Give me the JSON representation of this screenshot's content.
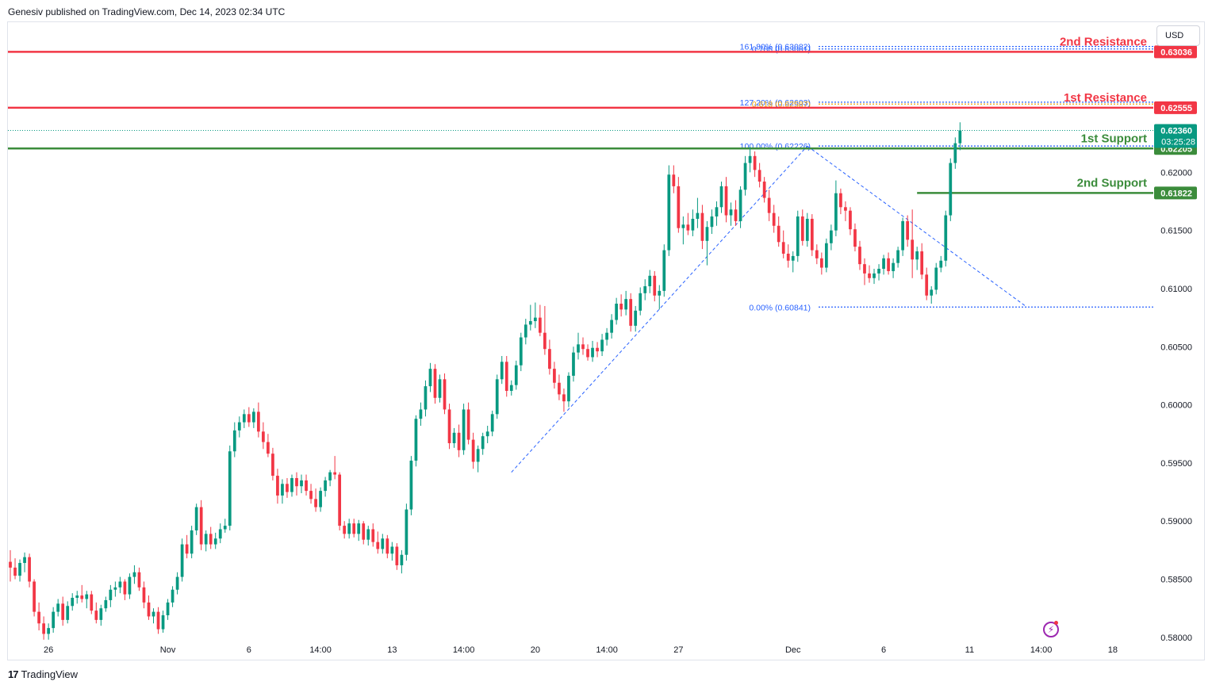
{
  "header": {
    "published": "Genesiv published on TradingView.com, Dec 14, 2023 02:34 UTC"
  },
  "currency": "USD",
  "footer": {
    "logo": "17",
    "brand": "TradingView"
  },
  "colors": {
    "up": "#089981",
    "down": "#f23645",
    "resistance": "#f23645",
    "support": "#3b8c3b",
    "fib": "#2962ff",
    "fib_gold": "#f0a30a",
    "current": "#089981"
  },
  "icons": {
    "flash": "lightning-icon"
  },
  "chart_data": {
    "type": "candlestick",
    "ylim": [
      0.57965,
      0.63291
    ],
    "y_ticks": [
      "0.58000",
      "0.58500",
      "0.59000",
      "0.59500",
      "0.60000",
      "0.60500",
      "0.61000",
      "0.61500",
      "0.62000"
    ],
    "x_ticks": [
      {
        "label": "26",
        "i": 8
      },
      {
        "label": "Nov",
        "i": 33
      },
      {
        "label": "6",
        "i": 50
      },
      {
        "label": "14:00",
        "i": 65
      },
      {
        "label": "13",
        "i": 80
      },
      {
        "label": "14:00",
        "i": 95
      },
      {
        "label": "20",
        "i": 110
      },
      {
        "label": "14:00",
        "i": 125
      },
      {
        "label": "27",
        "i": 140
      },
      {
        "label": "Dec",
        "i": 164
      },
      {
        "label": "6",
        "i": 183
      },
      {
        "label": "11",
        "i": 201
      },
      {
        "label": "14:00",
        "i": 216
      },
      {
        "label": "18",
        "i": 231
      }
    ],
    "bars_visible": 220,
    "bars_total": 240,
    "candles": [
      [
        0.5865,
        0.5875,
        0.5848,
        0.586
      ],
      [
        0.586,
        0.5868,
        0.585,
        0.5853
      ],
      [
        0.5853,
        0.5867,
        0.5848,
        0.5864
      ],
      [
        0.5864,
        0.5873,
        0.5856,
        0.5869
      ],
      [
        0.5869,
        0.5872,
        0.5843,
        0.5848
      ],
      [
        0.5848,
        0.585,
        0.5818,
        0.5822
      ],
      [
        0.5822,
        0.583,
        0.5806,
        0.5812
      ],
      [
        0.5812,
        0.5818,
        0.5798,
        0.5803
      ],
      [
        0.5803,
        0.5812,
        0.5798,
        0.5808
      ],
      [
        0.5808,
        0.5826,
        0.5804,
        0.5822
      ],
      [
        0.5822,
        0.5833,
        0.5818,
        0.5829
      ],
      [
        0.5829,
        0.5835,
        0.581,
        0.5815
      ],
      [
        0.5815,
        0.5831,
        0.5812,
        0.5827
      ],
      [
        0.5827,
        0.5838,
        0.5823,
        0.5834
      ],
      [
        0.5834,
        0.584,
        0.5829,
        0.5836
      ],
      [
        0.5836,
        0.5845,
        0.583,
        0.5833
      ],
      [
        0.5833,
        0.584,
        0.5825,
        0.5837
      ],
      [
        0.5837,
        0.584,
        0.582,
        0.5823
      ],
      [
        0.5823,
        0.583,
        0.5812,
        0.5815
      ],
      [
        0.5815,
        0.5828,
        0.581,
        0.5825
      ],
      [
        0.5825,
        0.5835,
        0.5822,
        0.5832
      ],
      [
        0.5832,
        0.5845,
        0.5826,
        0.5841
      ],
      [
        0.5841,
        0.5848,
        0.5835,
        0.5843
      ],
      [
        0.5843,
        0.5852,
        0.5838,
        0.5848
      ],
      [
        0.5848,
        0.585,
        0.5832,
        0.5837
      ],
      [
        0.5837,
        0.5855,
        0.5833,
        0.5852
      ],
      [
        0.5852,
        0.5862,
        0.5846,
        0.5856
      ],
      [
        0.5856,
        0.586,
        0.584,
        0.5843
      ],
      [
        0.5843,
        0.5848,
        0.5825,
        0.583
      ],
      [
        0.583,
        0.5836,
        0.5815,
        0.5818
      ],
      [
        0.5818,
        0.5825,
        0.5812,
        0.5822
      ],
      [
        0.5822,
        0.5826,
        0.5803,
        0.5807
      ],
      [
        0.5807,
        0.5823,
        0.5804,
        0.5819
      ],
      [
        0.5819,
        0.5833,
        0.5815,
        0.583
      ],
      [
        0.583,
        0.5844,
        0.5826,
        0.5841
      ],
      [
        0.5841,
        0.5856,
        0.5837,
        0.5852
      ],
      [
        0.5852,
        0.5885,
        0.5848,
        0.588
      ],
      [
        0.588,
        0.5888,
        0.5868,
        0.5872
      ],
      [
        0.5872,
        0.5896,
        0.5868,
        0.5892
      ],
      [
        0.5892,
        0.5915,
        0.5888,
        0.5912
      ],
      [
        0.5912,
        0.5918,
        0.5875,
        0.588
      ],
      [
        0.588,
        0.5892,
        0.5874,
        0.5889
      ],
      [
        0.5889,
        0.5895,
        0.5876,
        0.588
      ],
      [
        0.588,
        0.589,
        0.5876,
        0.5885
      ],
      [
        0.5885,
        0.5898,
        0.5881,
        0.5893
      ],
      [
        0.5893,
        0.5902,
        0.589,
        0.5896
      ],
      [
        0.5896,
        0.5965,
        0.5892,
        0.596
      ],
      [
        0.596,
        0.5985,
        0.5955,
        0.5978
      ],
      [
        0.5978,
        0.599,
        0.5972,
        0.5985
      ],
      [
        0.5985,
        0.5996,
        0.598,
        0.5992
      ],
      [
        0.5992,
        0.5998,
        0.5981,
        0.5985
      ],
      [
        0.5985,
        0.5997,
        0.598,
        0.5994
      ],
      [
        0.5994,
        0.6002,
        0.5972,
        0.5977
      ],
      [
        0.5977,
        0.5985,
        0.5962,
        0.5968
      ],
      [
        0.5968,
        0.5975,
        0.5955,
        0.5958
      ],
      [
        0.5958,
        0.5963,
        0.5935,
        0.5939
      ],
      [
        0.5939,
        0.5945,
        0.5915,
        0.5922
      ],
      [
        0.5922,
        0.5936,
        0.5915,
        0.5932
      ],
      [
        0.5932,
        0.5937,
        0.592,
        0.5925
      ],
      [
        0.5925,
        0.594,
        0.5921,
        0.5937
      ],
      [
        0.5937,
        0.5942,
        0.5922,
        0.593
      ],
      [
        0.593,
        0.594,
        0.5924,
        0.5935
      ],
      [
        0.5935,
        0.594,
        0.5922,
        0.5926
      ],
      [
        0.5926,
        0.5932,
        0.5915,
        0.5919
      ],
      [
        0.5919,
        0.5928,
        0.5908,
        0.5912
      ],
      [
        0.5912,
        0.5929,
        0.5908,
        0.5926
      ],
      [
        0.5926,
        0.5938,
        0.5921,
        0.5935
      ],
      [
        0.5935,
        0.5944,
        0.593,
        0.5942
      ],
      [
        0.5942,
        0.5956,
        0.5936,
        0.594
      ],
      [
        0.594,
        0.5942,
        0.5892,
        0.5896
      ],
      [
        0.5896,
        0.59,
        0.5885,
        0.5889
      ],
      [
        0.5889,
        0.5902,
        0.5885,
        0.5898
      ],
      [
        0.5898,
        0.5902,
        0.5886,
        0.5889
      ],
      [
        0.5889,
        0.5901,
        0.5883,
        0.5898
      ],
      [
        0.5898,
        0.59,
        0.588,
        0.5884
      ],
      [
        0.5884,
        0.5896,
        0.5879,
        0.5893
      ],
      [
        0.5893,
        0.5898,
        0.5878,
        0.5882
      ],
      [
        0.5882,
        0.5891,
        0.5872,
        0.5876
      ],
      [
        0.5876,
        0.5889,
        0.5872,
        0.5885
      ],
      [
        0.5885,
        0.5888,
        0.5868,
        0.5872
      ],
      [
        0.5872,
        0.5882,
        0.5866,
        0.5878
      ],
      [
        0.5878,
        0.5881,
        0.5858,
        0.5862
      ],
      [
        0.5862,
        0.5875,
        0.5855,
        0.5871
      ],
      [
        0.5871,
        0.5915,
        0.5866,
        0.591
      ],
      [
        0.591,
        0.5956,
        0.5905,
        0.5952
      ],
      [
        0.5952,
        0.5991,
        0.5947,
        0.5988
      ],
      [
        0.5988,
        0.6002,
        0.5982,
        0.5996
      ],
      [
        0.5996,
        0.6021,
        0.599,
        0.6016
      ],
      [
        0.6016,
        0.6036,
        0.6011,
        0.6031
      ],
      [
        0.6031,
        0.6035,
        0.6001,
        0.6006
      ],
      [
        0.6006,
        0.6026,
        0.6002,
        0.6022
      ],
      [
        0.6022,
        0.6027,
        0.5992,
        0.5996
      ],
      [
        0.5996,
        0.6001,
        0.5962,
        0.5967
      ],
      [
        0.5967,
        0.598,
        0.5963,
        0.5976
      ],
      [
        0.5976,
        0.5983,
        0.5955,
        0.5961
      ],
      [
        0.5961,
        0.6001,
        0.5957,
        0.5996
      ],
      [
        0.5996,
        0.6002,
        0.5966,
        0.597
      ],
      [
        0.597,
        0.5976,
        0.5945,
        0.5951
      ],
      [
        0.5951,
        0.5965,
        0.5942,
        0.5962
      ],
      [
        0.5962,
        0.5976,
        0.5957,
        0.5973
      ],
      [
        0.5973,
        0.5982,
        0.5967,
        0.5977
      ],
      [
        0.5977,
        0.5995,
        0.5973,
        0.5992
      ],
      [
        0.5992,
        0.6026,
        0.5988,
        0.6022
      ],
      [
        0.6022,
        0.6042,
        0.6018,
        0.6037
      ],
      [
        0.6037,
        0.6042,
        0.6007,
        0.6012
      ],
      [
        0.6012,
        0.6021,
        0.6008,
        0.6017
      ],
      [
        0.6017,
        0.6038,
        0.6013,
        0.6034
      ],
      [
        0.6034,
        0.6062,
        0.6029,
        0.6058
      ],
      [
        0.6058,
        0.6074,
        0.6052,
        0.6069
      ],
      [
        0.6069,
        0.6086,
        0.6064,
        0.6072
      ],
      [
        0.6072,
        0.6088,
        0.6066,
        0.6075
      ],
      [
        0.6075,
        0.6086,
        0.6059,
        0.6062
      ],
      [
        0.6062,
        0.6085,
        0.6043,
        0.6048
      ],
      [
        0.6048,
        0.6056,
        0.6026,
        0.6031
      ],
      [
        0.6031,
        0.6037,
        0.6014,
        0.6019
      ],
      [
        0.6019,
        0.6026,
        0.6004,
        0.6009
      ],
      [
        0.6009,
        0.6014,
        0.5994,
        0.6003
      ],
      [
        0.6003,
        0.6028,
        0.5998,
        0.6025
      ],
      [
        0.6025,
        0.605,
        0.602,
        0.6045
      ],
      [
        0.6045,
        0.6062,
        0.6039,
        0.6052
      ],
      [
        0.6052,
        0.6058,
        0.6043,
        0.6048
      ],
      [
        0.6048,
        0.6052,
        0.6038,
        0.6041
      ],
      [
        0.6041,
        0.6055,
        0.6037,
        0.6049
      ],
      [
        0.6049,
        0.6054,
        0.6041,
        0.6046
      ],
      [
        0.6046,
        0.6061,
        0.6042,
        0.6056
      ],
      [
        0.6056,
        0.6066,
        0.6051,
        0.6062
      ],
      [
        0.6062,
        0.6078,
        0.6057,
        0.6073
      ],
      [
        0.6073,
        0.6092,
        0.6069,
        0.6087
      ],
      [
        0.6087,
        0.6095,
        0.6076,
        0.6082
      ],
      [
        0.6082,
        0.6098,
        0.6077,
        0.6091
      ],
      [
        0.6091,
        0.6096,
        0.6063,
        0.6068
      ],
      [
        0.6068,
        0.6085,
        0.6063,
        0.6081
      ],
      [
        0.6081,
        0.6101,
        0.6077,
        0.6096
      ],
      [
        0.6096,
        0.6108,
        0.609,
        0.6102
      ],
      [
        0.6102,
        0.6116,
        0.6096,
        0.6111
      ],
      [
        0.6111,
        0.6115,
        0.6089,
        0.6094
      ],
      [
        0.6094,
        0.6103,
        0.6082,
        0.6098
      ],
      [
        0.6098,
        0.6138,
        0.6093,
        0.6133
      ],
      [
        0.6133,
        0.6206,
        0.6128,
        0.6198
      ],
      [
        0.6198,
        0.6206,
        0.6182,
        0.6188
      ],
      [
        0.6188,
        0.6196,
        0.6148,
        0.6152
      ],
      [
        0.6152,
        0.6162,
        0.6138,
        0.6155
      ],
      [
        0.6155,
        0.6165,
        0.6146,
        0.615
      ],
      [
        0.615,
        0.6168,
        0.6145,
        0.616
      ],
      [
        0.616,
        0.6178,
        0.6152,
        0.6165
      ],
      [
        0.6165,
        0.6172,
        0.6134,
        0.6141
      ],
      [
        0.6141,
        0.6158,
        0.612,
        0.6153
      ],
      [
        0.6153,
        0.6168,
        0.6147,
        0.6162
      ],
      [
        0.6162,
        0.6175,
        0.6154,
        0.617
      ],
      [
        0.617,
        0.6192,
        0.6165,
        0.6188
      ],
      [
        0.6188,
        0.6196,
        0.6157,
        0.6163
      ],
      [
        0.6163,
        0.6174,
        0.6154,
        0.6168
      ],
      [
        0.6168,
        0.6176,
        0.6154,
        0.6158
      ],
      [
        0.6158,
        0.6188,
        0.6152,
        0.6185
      ],
      [
        0.6185,
        0.6214,
        0.618,
        0.6208
      ],
      [
        0.6208,
        0.6222,
        0.62,
        0.6214
      ],
      [
        0.6214,
        0.6218,
        0.6196,
        0.6202
      ],
      [
        0.6202,
        0.6208,
        0.6187,
        0.6192
      ],
      [
        0.6192,
        0.6196,
        0.6174,
        0.6178
      ],
      [
        0.6178,
        0.6185,
        0.6158,
        0.6165
      ],
      [
        0.6165,
        0.6172,
        0.6148,
        0.6154
      ],
      [
        0.6154,
        0.6162,
        0.6136,
        0.614
      ],
      [
        0.614,
        0.615,
        0.6126,
        0.613
      ],
      [
        0.613,
        0.6138,
        0.6118,
        0.6124
      ],
      [
        0.6124,
        0.6132,
        0.6114,
        0.6128
      ],
      [
        0.6128,
        0.6167,
        0.6123,
        0.6162
      ],
      [
        0.6162,
        0.6168,
        0.6137,
        0.6141
      ],
      [
        0.6141,
        0.6165,
        0.6136,
        0.616
      ],
      [
        0.616,
        0.6164,
        0.6128,
        0.6133
      ],
      [
        0.6133,
        0.6138,
        0.6121,
        0.6126
      ],
      [
        0.6126,
        0.6131,
        0.6112,
        0.6118
      ],
      [
        0.6118,
        0.6143,
        0.6114,
        0.6139
      ],
      [
        0.6139,
        0.6155,
        0.6133,
        0.615
      ],
      [
        0.615,
        0.6193,
        0.6145,
        0.6182
      ],
      [
        0.6182,
        0.6186,
        0.6164,
        0.617
      ],
      [
        0.617,
        0.6175,
        0.6158,
        0.6167
      ],
      [
        0.6167,
        0.617,
        0.6146,
        0.6151
      ],
      [
        0.6151,
        0.6156,
        0.6132,
        0.6136
      ],
      [
        0.6136,
        0.6141,
        0.6116,
        0.6121
      ],
      [
        0.6121,
        0.6126,
        0.6103,
        0.6113
      ],
      [
        0.6113,
        0.612,
        0.6105,
        0.6109
      ],
      [
        0.6109,
        0.6117,
        0.6104,
        0.6113
      ],
      [
        0.6113,
        0.6121,
        0.6107,
        0.6117
      ],
      [
        0.6117,
        0.6129,
        0.6112,
        0.6126
      ],
      [
        0.6126,
        0.6131,
        0.6112,
        0.6115
      ],
      [
        0.6115,
        0.6126,
        0.6109,
        0.6122
      ],
      [
        0.6122,
        0.6136,
        0.6118,
        0.6133
      ],
      [
        0.6133,
        0.6161,
        0.6128,
        0.6158
      ],
      [
        0.6158,
        0.6163,
        0.6136,
        0.6142
      ],
      [
        0.6142,
        0.6168,
        0.6109,
        0.6125
      ],
      [
        0.6125,
        0.6136,
        0.6116,
        0.6132
      ],
      [
        0.6132,
        0.6139,
        0.6108,
        0.6112
      ],
      [
        0.6112,
        0.6118,
        0.609,
        0.6094
      ],
      [
        0.6094,
        0.6102,
        0.6087,
        0.6099
      ],
      [
        0.6099,
        0.6122,
        0.6095,
        0.6118
      ],
      [
        0.6118,
        0.6128,
        0.6114,
        0.6124
      ],
      [
        0.6124,
        0.6167,
        0.6119,
        0.6163
      ],
      [
        0.6163,
        0.6212,
        0.6158,
        0.6208
      ],
      [
        0.6208,
        0.623,
        0.6203,
        0.6225
      ],
      [
        0.6225,
        0.6243,
        0.6219,
        0.6236
      ]
    ],
    "horizontal_levels": [
      {
        "name": "2nd Resistance",
        "price_label": "0.63036",
        "value": 0.63036,
        "color": "#f23645"
      },
      {
        "name": "1st Resistance",
        "price_label": "0.62555",
        "value": 0.62555,
        "color": "#f23645"
      },
      {
        "name": "1st Support",
        "price_label": "0.62205",
        "value": 0.62205,
        "color": "#3b8c3b"
      },
      {
        "name": "2nd Support",
        "price_label": "0.61822",
        "value": 0.61822,
        "color": "#3b8c3b"
      }
    ],
    "current_price": {
      "value": 0.6236,
      "label": "0.62360",
      "countdown": "03:25:28"
    },
    "fib_labels": [
      {
        "text": "161.80% (0.63082)",
        "value": 0.63082,
        "color": "#2962ff"
      },
      {
        "text": "0.786 (0.63061)",
        "value": 0.63061,
        "color": "#2962ff"
      },
      {
        "text": "127.20% (0.62603)",
        "value": 0.62603,
        "color": "#2962ff"
      },
      {
        "text": "0.618 (0.62587)",
        "value": 0.62587,
        "color": "#f0a30a"
      },
      {
        "text": "100.00% (0.62226)",
        "value": 0.62226,
        "color": "#2962ff"
      },
      {
        "text": "0.00% (0.60841)",
        "value": 0.60841,
        "color": "#2962ff"
      }
    ],
    "trend_lines": [
      {
        "from": [
          105,
          0.5942
        ],
        "to": [
          167,
          0.62226
        ]
      },
      {
        "from": [
          167,
          0.62226
        ],
        "to": [
          213,
          0.60841
        ]
      }
    ],
    "support_segment": {
      "from_i": 190,
      "value": 0.61822
    }
  }
}
